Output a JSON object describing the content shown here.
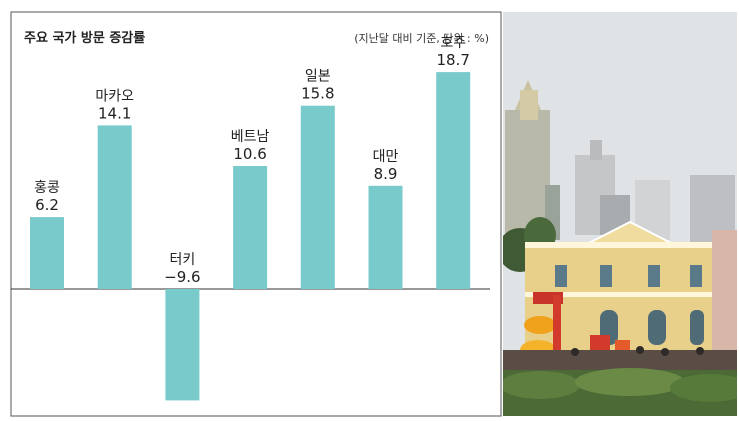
{
  "chart_data": {
    "type": "bar",
    "title": "주요 국가 방문 증감률",
    "subtitle": "(지난달 대비 기준, 단위 : %)",
    "categories": [
      "홍콩",
      "마카오",
      "터키",
      "베트남",
      "일본",
      "대만",
      "호주"
    ],
    "values": [
      6.2,
      14.1,
      -9.6,
      10.6,
      15.8,
      8.9,
      18.7
    ],
    "value_labels": [
      "6.2",
      "14.1",
      "−9.6",
      "10.6",
      "15.8",
      "8.9",
      "18.7"
    ],
    "ylim": [
      -10,
      20
    ],
    "grid": false,
    "bar_color": "#79cbcb",
    "frame_color": "#555555"
  },
  "photo": {
    "name": "macau-street-photo",
    "sky_color": "#dfe3e6",
    "building_color": "#e8cf8a"
  }
}
